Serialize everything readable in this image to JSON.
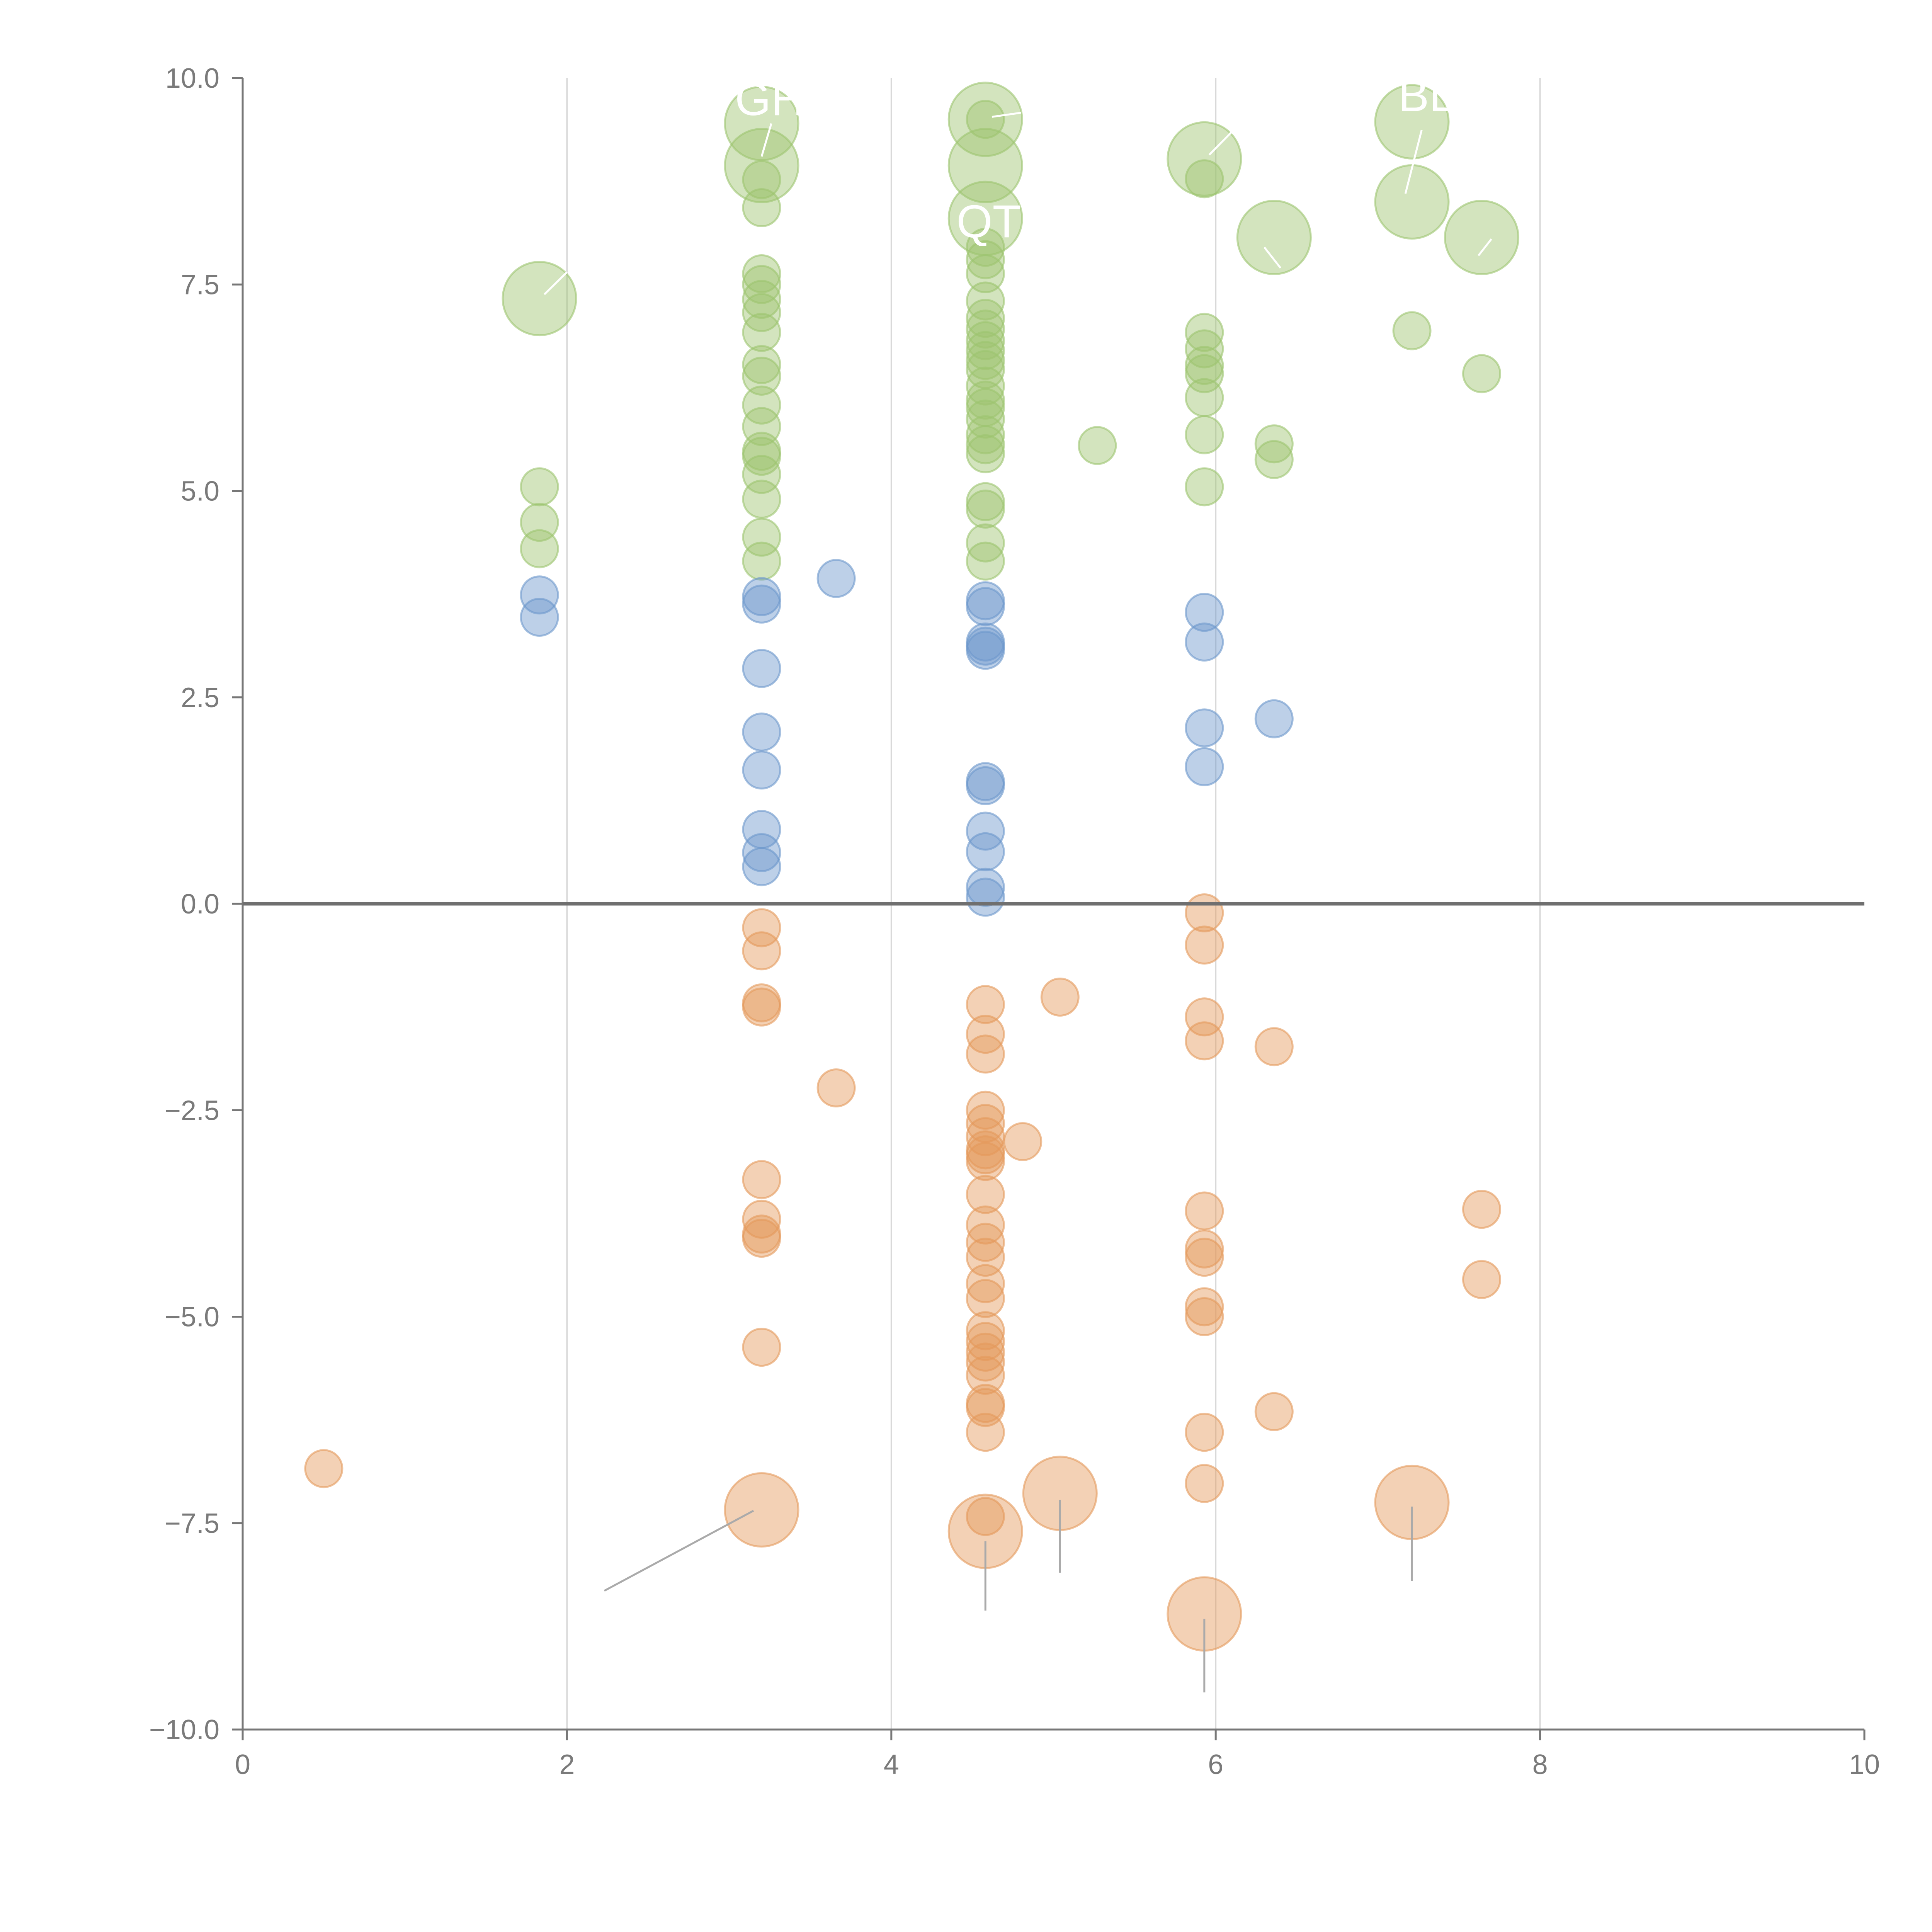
{
  "chart_data": {
    "type": "scatter",
    "subtype": "bubble",
    "title": "",
    "xlabel": "",
    "ylabel": "",
    "xlim": [
      0,
      10
    ],
    "ylim": [
      -10,
      10
    ],
    "x_ticks": [
      "0",
      "2",
      "4",
      "6",
      "8",
      "10"
    ],
    "y_ticks": [
      "−10.0",
      "−7.5",
      "−5.0",
      "−2.5",
      "0.0",
      "2.5",
      "5.0",
      "7.5",
      "10.0"
    ],
    "x_tick_values": [
      0,
      2,
      4,
      6,
      8,
      10
    ],
    "y_tick_values": [
      -10,
      -7.5,
      -5,
      -2.5,
      0,
      2.5,
      5,
      7.5,
      10
    ],
    "vertical_grid": true,
    "zero_line": true,
    "colors": {
      "green": "#9dc46f",
      "blue": "#6c97cc",
      "orange": "#e59a5c",
      "grid": "#d9d9d9",
      "axis": "#777777",
      "text": "#7a7a7a",
      "leader": "#aaaaaa"
    },
    "series": [
      {
        "name": "green",
        "color": "#9dc46f",
        "points": [
          {
            "x": 1.83,
            "y": 5.05,
            "size": 1
          },
          {
            "x": 1.83,
            "y": 4.62,
            "size": 1
          },
          {
            "x": 1.83,
            "y": 4.3,
            "size": 1
          },
          {
            "x": 3.2,
            "y": 8.77,
            "size": 1
          },
          {
            "x": 3.2,
            "y": 8.43,
            "size": 1
          },
          {
            "x": 3.2,
            "y": 7.63,
            "size": 1
          },
          {
            "x": 3.2,
            "y": 7.5,
            "size": 1
          },
          {
            "x": 3.2,
            "y": 7.32,
            "size": 1
          },
          {
            "x": 3.2,
            "y": 7.16,
            "size": 1
          },
          {
            "x": 3.2,
            "y": 6.92,
            "size": 1
          },
          {
            "x": 3.2,
            "y": 6.53,
            "size": 1
          },
          {
            "x": 3.2,
            "y": 6.39,
            "size": 1
          },
          {
            "x": 3.2,
            "y": 6.04,
            "size": 1
          },
          {
            "x": 3.2,
            "y": 5.78,
            "size": 1
          },
          {
            "x": 3.2,
            "y": 5.48,
            "size": 1
          },
          {
            "x": 3.2,
            "y": 5.42,
            "size": 1
          },
          {
            "x": 3.2,
            "y": 5.2,
            "size": 1
          },
          {
            "x": 3.2,
            "y": 4.9,
            "size": 1
          },
          {
            "x": 3.2,
            "y": 4.44,
            "size": 1
          },
          {
            "x": 3.2,
            "y": 4.15,
            "size": 1
          },
          {
            "x": 4.58,
            "y": 9.5,
            "size": 1
          },
          {
            "x": 4.58,
            "y": 7.95,
            "size": 1
          },
          {
            "x": 4.58,
            "y": 7.8,
            "size": 1
          },
          {
            "x": 4.58,
            "y": 7.63,
            "size": 1
          },
          {
            "x": 4.58,
            "y": 7.3,
            "size": 1
          },
          {
            "x": 4.58,
            "y": 7.09,
            "size": 1
          },
          {
            "x": 4.58,
            "y": 6.96,
            "size": 1
          },
          {
            "x": 4.58,
            "y": 6.82,
            "size": 1
          },
          {
            "x": 4.58,
            "y": 6.7,
            "size": 1
          },
          {
            "x": 4.58,
            "y": 6.58,
            "size": 1
          },
          {
            "x": 4.58,
            "y": 6.47,
            "size": 1
          },
          {
            "x": 4.58,
            "y": 6.27,
            "size": 1
          },
          {
            "x": 4.58,
            "y": 6.1,
            "size": 1
          },
          {
            "x": 4.58,
            "y": 6.01,
            "size": 1
          },
          {
            "x": 4.58,
            "y": 5.87,
            "size": 1
          },
          {
            "x": 4.58,
            "y": 5.68,
            "size": 1
          },
          {
            "x": 4.58,
            "y": 5.56,
            "size": 1
          },
          {
            "x": 4.58,
            "y": 5.45,
            "size": 1
          },
          {
            "x": 4.58,
            "y": 4.87,
            "size": 1
          },
          {
            "x": 4.58,
            "y": 4.78,
            "size": 1
          },
          {
            "x": 4.58,
            "y": 4.37,
            "size": 1
          },
          {
            "x": 4.58,
            "y": 4.15,
            "size": 1
          },
          {
            "x": 5.27,
            "y": 5.55,
            "size": 1
          },
          {
            "x": 5.93,
            "y": 8.78,
            "size": 1
          },
          {
            "x": 5.93,
            "y": 6.92,
            "size": 1
          },
          {
            "x": 5.93,
            "y": 6.72,
            "size": 1
          },
          {
            "x": 5.93,
            "y": 6.52,
            "size": 1
          },
          {
            "x": 5.93,
            "y": 6.42,
            "size": 1
          },
          {
            "x": 5.93,
            "y": 6.13,
            "size": 1
          },
          {
            "x": 5.93,
            "y": 5.68,
            "size": 1
          },
          {
            "x": 5.93,
            "y": 5.05,
            "size": 1
          },
          {
            "x": 6.36,
            "y": 5.57,
            "size": 1
          },
          {
            "x": 6.36,
            "y": 5.38,
            "size": 1
          },
          {
            "x": 7.21,
            "y": 6.94,
            "size": 1
          },
          {
            "x": 7.64,
            "y": 6.42,
            "size": 1
          },
          {
            "x": 1.83,
            "y": 7.33,
            "size": 2
          },
          {
            "x": 3.2,
            "y": 9.45,
            "size": 2
          },
          {
            "x": 3.2,
            "y": 8.94,
            "size": 2
          },
          {
            "x": 4.58,
            "y": 9.5,
            "size": 2
          },
          {
            "x": 4.58,
            "y": 8.94,
            "size": 2
          },
          {
            "x": 4.58,
            "y": 8.3,
            "size": 2
          },
          {
            "x": 5.93,
            "y": 9.02,
            "size": 2
          },
          {
            "x": 6.36,
            "y": 8.07,
            "size": 2
          },
          {
            "x": 7.21,
            "y": 9.47,
            "size": 2
          },
          {
            "x": 7.21,
            "y": 8.5,
            "size": 2
          },
          {
            "x": 7.64,
            "y": 8.07,
            "size": 2
          }
        ]
      },
      {
        "name": "blue",
        "color": "#6c97cc",
        "points": [
          {
            "x": 1.83,
            "y": 3.74,
            "size": 1
          },
          {
            "x": 1.83,
            "y": 3.47,
            "size": 1
          },
          {
            "x": 3.2,
            "y": 3.72,
            "size": 1
          },
          {
            "x": 3.2,
            "y": 3.63,
            "size": 1
          },
          {
            "x": 3.2,
            "y": 2.85,
            "size": 1
          },
          {
            "x": 3.2,
            "y": 2.08,
            "size": 1
          },
          {
            "x": 3.2,
            "y": 1.62,
            "size": 1
          },
          {
            "x": 3.2,
            "y": 0.9,
            "size": 1
          },
          {
            "x": 3.2,
            "y": 0.62,
            "size": 1
          },
          {
            "x": 3.2,
            "y": 0.45,
            "size": 1
          },
          {
            "x": 3.66,
            "y": 3.94,
            "size": 1
          },
          {
            "x": 4.58,
            "y": 3.67,
            "size": 1
          },
          {
            "x": 4.58,
            "y": 3.6,
            "size": 1
          },
          {
            "x": 4.58,
            "y": 3.17,
            "size": 1
          },
          {
            "x": 4.58,
            "y": 3.12,
            "size": 1
          },
          {
            "x": 4.58,
            "y": 3.07,
            "size": 1
          },
          {
            "x": 4.58,
            "y": 1.48,
            "size": 1
          },
          {
            "x": 4.58,
            "y": 1.43,
            "size": 1
          },
          {
            "x": 4.58,
            "y": 0.88,
            "size": 1
          },
          {
            "x": 4.58,
            "y": 0.63,
            "size": 1
          },
          {
            "x": 4.58,
            "y": 0.2,
            "size": 1
          },
          {
            "x": 4.58,
            "y": 0.08,
            "size": 1
          },
          {
            "x": 5.93,
            "y": 3.53,
            "size": 1
          },
          {
            "x": 5.93,
            "y": 3.17,
            "size": 1
          },
          {
            "x": 5.93,
            "y": 2.13,
            "size": 1
          },
          {
            "x": 5.93,
            "y": 1.66,
            "size": 1
          },
          {
            "x": 6.36,
            "y": 2.24,
            "size": 1
          }
        ]
      },
      {
        "name": "orange",
        "color": "#e59a5c",
        "points": [
          {
            "x": 0.5,
            "y": -6.84,
            "size": 1
          },
          {
            "x": 3.2,
            "y": -0.29,
            "size": 1
          },
          {
            "x": 3.2,
            "y": -0.57,
            "size": 1
          },
          {
            "x": 3.2,
            "y": -1.2,
            "size": 1
          },
          {
            "x": 3.2,
            "y": -1.25,
            "size": 1
          },
          {
            "x": 3.2,
            "y": -3.34,
            "size": 1
          },
          {
            "x": 3.2,
            "y": -3.82,
            "size": 1
          },
          {
            "x": 3.2,
            "y": -4.0,
            "size": 1
          },
          {
            "x": 3.2,
            "y": -4.05,
            "size": 1
          },
          {
            "x": 3.2,
            "y": -5.37,
            "size": 1
          },
          {
            "x": 3.66,
            "y": -2.23,
            "size": 1
          },
          {
            "x": 4.58,
            "y": -1.22,
            "size": 1
          },
          {
            "x": 4.58,
            "y": -1.58,
            "size": 1
          },
          {
            "x": 4.58,
            "y": -1.82,
            "size": 1
          },
          {
            "x": 4.58,
            "y": -2.5,
            "size": 1
          },
          {
            "x": 4.58,
            "y": -2.66,
            "size": 1
          },
          {
            "x": 4.58,
            "y": -2.82,
            "size": 1
          },
          {
            "x": 4.58,
            "y": -2.98,
            "size": 1
          },
          {
            "x": 4.58,
            "y": -3.04,
            "size": 1
          },
          {
            "x": 4.58,
            "y": -3.12,
            "size": 1
          },
          {
            "x": 4.58,
            "y": -3.52,
            "size": 1
          },
          {
            "x": 4.58,
            "y": -3.89,
            "size": 1
          },
          {
            "x": 4.58,
            "y": -4.1,
            "size": 1
          },
          {
            "x": 4.58,
            "y": -4.28,
            "size": 1
          },
          {
            "x": 4.58,
            "y": -4.6,
            "size": 1
          },
          {
            "x": 4.58,
            "y": -4.78,
            "size": 1
          },
          {
            "x": 4.58,
            "y": -5.17,
            "size": 1
          },
          {
            "x": 4.58,
            "y": -5.3,
            "size": 1
          },
          {
            "x": 4.58,
            "y": -5.43,
            "size": 1
          },
          {
            "x": 4.58,
            "y": -5.55,
            "size": 1
          },
          {
            "x": 4.58,
            "y": -5.71,
            "size": 1
          },
          {
            "x": 4.58,
            "y": -6.05,
            "size": 1
          },
          {
            "x": 4.58,
            "y": -6.1,
            "size": 1
          },
          {
            "x": 4.58,
            "y": -6.4,
            "size": 1
          },
          {
            "x": 4.58,
            "y": -7.42,
            "size": 1
          },
          {
            "x": 4.81,
            "y": -2.88,
            "size": 1
          },
          {
            "x": 5.04,
            "y": -1.13,
            "size": 1
          },
          {
            "x": 5.93,
            "y": -0.11,
            "size": 1
          },
          {
            "x": 5.93,
            "y": -0.5,
            "size": 1
          },
          {
            "x": 5.93,
            "y": -1.37,
            "size": 1
          },
          {
            "x": 5.93,
            "y": -1.66,
            "size": 1
          },
          {
            "x": 5.93,
            "y": -3.72,
            "size": 1
          },
          {
            "x": 5.93,
            "y": -4.18,
            "size": 1
          },
          {
            "x": 5.93,
            "y": -4.28,
            "size": 1
          },
          {
            "x": 5.93,
            "y": -4.88,
            "size": 1
          },
          {
            "x": 5.93,
            "y": -5.0,
            "size": 1
          },
          {
            "x": 5.93,
            "y": -6.4,
            "size": 1
          },
          {
            "x": 5.93,
            "y": -7.02,
            "size": 1
          },
          {
            "x": 6.36,
            "y": -1.73,
            "size": 1
          },
          {
            "x": 6.36,
            "y": -6.15,
            "size": 1
          },
          {
            "x": 7.64,
            "y": -3.7,
            "size": 1
          },
          {
            "x": 7.64,
            "y": -4.55,
            "size": 1
          },
          {
            "x": 3.2,
            "y": -7.34,
            "size": 2
          },
          {
            "x": 4.58,
            "y": -7.6,
            "size": 2
          },
          {
            "x": 5.04,
            "y": -7.14,
            "size": 2
          },
          {
            "x": 5.93,
            "y": -8.6,
            "size": 2
          },
          {
            "x": 7.21,
            "y": -7.25,
            "size": 2
          }
        ]
      }
    ],
    "labels": [
      {
        "text": "GH",
        "x": 3.25,
        "y": 9.55,
        "lx1": 3.26,
        "ly1": 9.45,
        "lx2": 3.2,
        "ly2": 9.05
      },
      {
        "text": "QT",
        "x": 4.6,
        "y": 8.07,
        "lx1": 4.62,
        "ly1": 9.53,
        "lx2": 4.8,
        "ly2": 9.58
      },
      {
        "text": "BL",
        "x": 7.3,
        "y": 9.6,
        "lx1": 7.27,
        "ly1": 9.37,
        "lx2": 7.17,
        "ly2": 8.6
      },
      {
        "text": "",
        "x": 0,
        "y": 0,
        "lx1": 1.86,
        "ly1": 7.38,
        "lx2": 2.0,
        "ly2": 7.65
      },
      {
        "text": "",
        "x": 0,
        "y": 0,
        "lx1": 5.96,
        "ly1": 9.07,
        "lx2": 6.1,
        "ly2": 9.35
      },
      {
        "text": "",
        "x": 0,
        "y": 0,
        "lx1": 6.4,
        "ly1": 7.7,
        "lx2": 6.3,
        "ly2": 7.95
      },
      {
        "text": "",
        "x": 0,
        "y": 0,
        "lx1": 7.62,
        "ly1": 7.85,
        "lx2": 7.7,
        "ly2": 8.05
      },
      {
        "text": "",
        "x": 0,
        "y": 0,
        "lx1": 3.15,
        "ly1": -7.35,
        "lx2": 2.23,
        "ly2": -8.32
      },
      {
        "text": "",
        "x": 0,
        "y": 0,
        "lx1": 4.58,
        "ly1": -7.72,
        "lx2": 4.58,
        "ly2": -8.56
      },
      {
        "text": "",
        "x": 0,
        "y": 0,
        "lx1": 5.04,
        "ly1": -7.22,
        "lx2": 5.04,
        "ly2": -8.1
      },
      {
        "text": "",
        "x": 0,
        "y": 0,
        "lx1": 5.93,
        "ly1": -8.66,
        "lx2": 5.93,
        "ly2": -9.55
      },
      {
        "text": "",
        "x": 0,
        "y": 0,
        "lx1": 7.21,
        "ly1": -7.3,
        "lx2": 7.21,
        "ly2": -8.2
      }
    ]
  }
}
